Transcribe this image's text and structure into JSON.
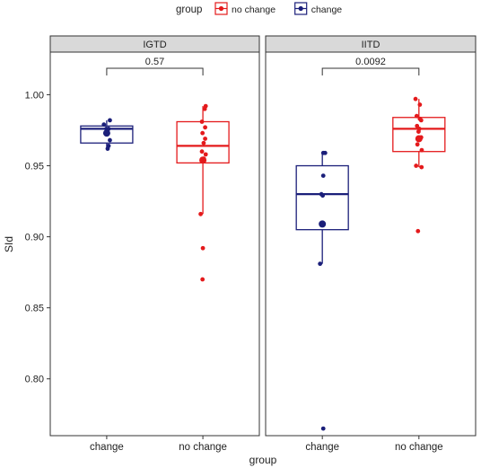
{
  "chart_data": {
    "type": "box",
    "title": "",
    "xlabel": "group",
    "ylabel": "SId",
    "ylim": [
      0.76,
      1.03
    ],
    "yticks": [
      "0.80",
      "0.85",
      "0.90",
      "0.95",
      "1.00"
    ],
    "ytick_values": [
      0.8,
      0.85,
      0.9,
      0.95,
      1.0
    ],
    "grid": false,
    "legend": {
      "title": "group",
      "position": "top",
      "entries": [
        {
          "label": "no change",
          "color": "#e41a1c"
        },
        {
          "label": "change",
          "color": "#1b1f7a"
        }
      ]
    },
    "categories": [
      "change",
      "no change"
    ],
    "colors": {
      "change": "#1b1f7a",
      "no change": "#e41a1c"
    },
    "panels": [
      {
        "name": "IGTD",
        "p_value": "0.57",
        "groups": [
          {
            "category": "change",
            "q1": 0.966,
            "median": 0.976,
            "q3": 0.978,
            "min": 0.962,
            "max": 0.982,
            "mean": 0.973,
            "points": [
              {
                "j": -0.15,
                "y": 0.979
              },
              {
                "j": -0.02,
                "y": 0.976
              },
              {
                "j": 0.17,
                "y": 0.982
              },
              {
                "j": 0.1,
                "y": 0.976
              },
              {
                "j": 0.17,
                "y": 0.968
              },
              {
                "j": 0.1,
                "y": 0.964
              },
              {
                "j": 0.05,
                "y": 0.962
              }
            ]
          },
          {
            "category": "no change",
            "q1": 0.952,
            "median": 0.964,
            "q3": 0.981,
            "min": 0.916,
            "max": 0.992,
            "mean": 0.954,
            "points": [
              {
                "j": 0.1,
                "y": 0.99
              },
              {
                "j": 0.15,
                "y": 0.992
              },
              {
                "j": -0.05,
                "y": 0.981
              },
              {
                "j": 0.12,
                "y": 0.977
              },
              {
                "j": -0.02,
                "y": 0.973
              },
              {
                "j": 0.12,
                "y": 0.969
              },
              {
                "j": 0.04,
                "y": 0.966
              },
              {
                "j": -0.05,
                "y": 0.96
              },
              {
                "j": 0.15,
                "y": 0.958
              },
              {
                "j": 0.05,
                "y": 0.955
              },
              {
                "j": -0.12,
                "y": 0.916
              },
              {
                "j": 0.0,
                "y": 0.892
              },
              {
                "j": -0.02,
                "y": 0.87
              }
            ]
          }
        ]
      },
      {
        "name": "IITD",
        "p_value": "0.0092",
        "groups": [
          {
            "category": "change",
            "q1": 0.905,
            "median": 0.93,
            "q3": 0.95,
            "min": 0.881,
            "max": 0.959,
            "mean": 0.909,
            "points": [
              {
                "j": 0.05,
                "y": 0.959
              },
              {
                "j": 0.15,
                "y": 0.959
              },
              {
                "j": 0.05,
                "y": 0.943
              },
              {
                "j": -0.05,
                "y": 0.93
              },
              {
                "j": 0.02,
                "y": 0.929
              },
              {
                "j": -0.12,
                "y": 0.881
              },
              {
                "j": 0.05,
                "y": 0.765
              }
            ]
          },
          {
            "category": "no change",
            "q1": 0.96,
            "median": 0.976,
            "q3": 0.984,
            "min": 0.949,
            "max": 0.997,
            "mean": 0.969,
            "points": [
              {
                "j": -0.18,
                "y": 0.997
              },
              {
                "j": 0.05,
                "y": 0.993
              },
              {
                "j": -0.12,
                "y": 0.985
              },
              {
                "j": 0.05,
                "y": 0.983
              },
              {
                "j": 0.12,
                "y": 0.982
              },
              {
                "j": -0.1,
                "y": 0.978
              },
              {
                "j": 0.02,
                "y": 0.976
              },
              {
                "j": -0.02,
                "y": 0.974
              },
              {
                "j": 0.12,
                "y": 0.97
              },
              {
                "j": -0.08,
                "y": 0.965
              },
              {
                "j": 0.15,
                "y": 0.961
              },
              {
                "j": -0.15,
                "y": 0.95
              },
              {
                "j": 0.14,
                "y": 0.949
              },
              {
                "j": -0.05,
                "y": 0.904
              }
            ]
          }
        ]
      }
    ]
  }
}
